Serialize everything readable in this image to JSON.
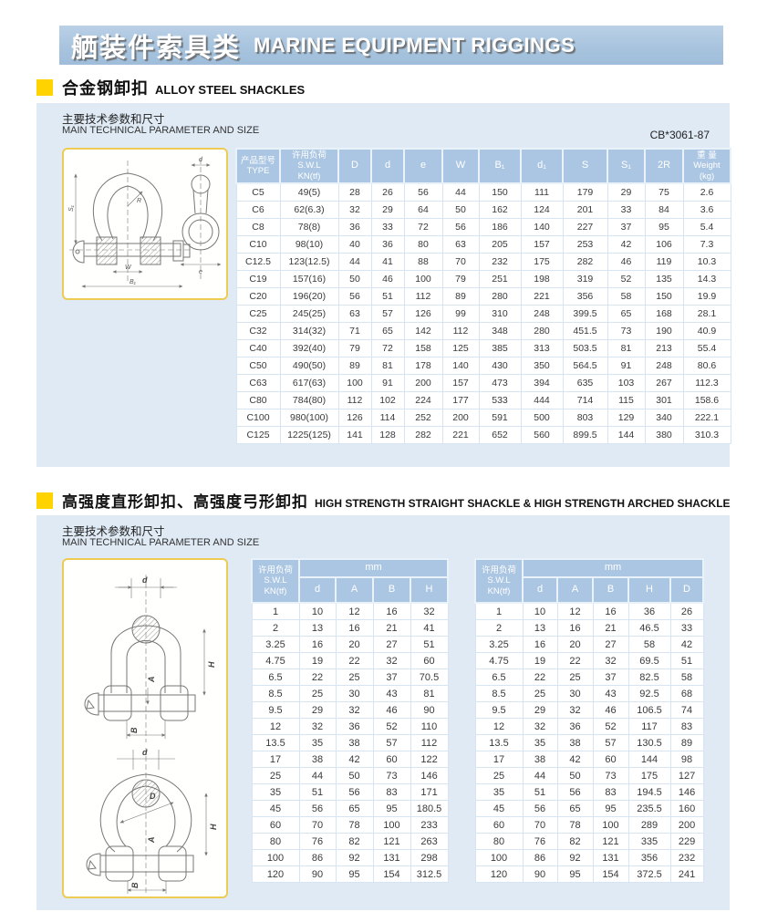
{
  "header": {
    "title_cn": "舾装件索具类",
    "title_en": "MARINE EQUIPMENT RIGGINGS"
  },
  "section1": {
    "heading_cn": "合金钢卸扣",
    "heading_en": "ALLOY STEEL SHACKLES",
    "param_cn": "主要技术参数和尺寸",
    "param_en": "MAIN TECHNICAL PARAMETER AND SIZE",
    "standard": "CB*3061-87",
    "diagram_labels": [
      "S₁",
      "W",
      "B₁",
      "R",
      "d",
      "e"
    ],
    "table": {
      "headers": [
        "产品型号\nTYPE",
        "许用负荷\nS.W.L\nKN(tf)",
        "D",
        "d",
        "e",
        "W",
        "B₁",
        "d₁",
        "S",
        "S₁",
        "2R",
        "重 量\nWeight\n(kg)"
      ],
      "rows": [
        [
          "C5",
          "49(5)",
          "28",
          "26",
          "56",
          "44",
          "150",
          "111",
          "179",
          "29",
          "75",
          "2.6"
        ],
        [
          "C6",
          "62(6.3)",
          "32",
          "29",
          "64",
          "50",
          "162",
          "124",
          "201",
          "33",
          "84",
          "3.6"
        ],
        [
          "C8",
          "78(8)",
          "36",
          "33",
          "72",
          "56",
          "186",
          "140",
          "227",
          "37",
          "95",
          "5.4"
        ],
        [
          "C10",
          "98(10)",
          "40",
          "36",
          "80",
          "63",
          "205",
          "157",
          "253",
          "42",
          "106",
          "7.3"
        ],
        [
          "C12.5",
          "123(12.5)",
          "44",
          "41",
          "88",
          "70",
          "232",
          "175",
          "282",
          "46",
          "119",
          "10.3"
        ],
        [
          "C19",
          "157(16)",
          "50",
          "46",
          "100",
          "79",
          "251",
          "198",
          "319",
          "52",
          "135",
          "14.3"
        ],
        [
          "C20",
          "196(20)",
          "56",
          "51",
          "112",
          "89",
          "280",
          "221",
          "356",
          "58",
          "150",
          "19.9"
        ],
        [
          "C25",
          "245(25)",
          "63",
          "57",
          "126",
          "99",
          "310",
          "248",
          "399.5",
          "65",
          "168",
          "28.1"
        ],
        [
          "C32",
          "314(32)",
          "71",
          "65",
          "142",
          "112",
          "348",
          "280",
          "451.5",
          "73",
          "190",
          "40.9"
        ],
        [
          "C40",
          "392(40)",
          "79",
          "72",
          "158",
          "125",
          "385",
          "313",
          "503.5",
          "81",
          "213",
          "55.4"
        ],
        [
          "C50",
          "490(50)",
          "89",
          "81",
          "178",
          "140",
          "430",
          "350",
          "564.5",
          "91",
          "248",
          "80.6"
        ],
        [
          "C63",
          "617(63)",
          "100",
          "91",
          "200",
          "157",
          "473",
          "394",
          "635",
          "103",
          "267",
          "112.3"
        ],
        [
          "C80",
          "784(80)",
          "112",
          "102",
          "224",
          "177",
          "533",
          "444",
          "714",
          "115",
          "301",
          "158.6"
        ],
        [
          "C100",
          "980(100)",
          "126",
          "114",
          "252",
          "200",
          "591",
          "500",
          "803",
          "129",
          "340",
          "222.1"
        ],
        [
          "C125",
          "1225(125)",
          "141",
          "128",
          "282",
          "221",
          "652",
          "560",
          "899.5",
          "144",
          "380",
          "310.3"
        ]
      ]
    }
  },
  "section2": {
    "heading_cn": "高强度直形卸扣、高强度弓形卸扣",
    "heading_en": "HIGH STRENGTH STRAIGHT SHACKLE & HIGH STRENGTH ARCHED SHACKLE",
    "param_cn": "主要技术参数和尺寸",
    "param_en": "MAIN TECHNICAL PARAMETER AND SIZE",
    "diagram_labels": [
      "d",
      "H",
      "A",
      "B",
      "D"
    ],
    "straight_table": {
      "swl_header": "许用负荷\nS.W.L\nKN(tf)",
      "unit_header": "mm",
      "sub_headers": [
        "d",
        "A",
        "B",
        "H"
      ],
      "rows": [
        [
          "1",
          "10",
          "12",
          "16",
          "32"
        ],
        [
          "2",
          "13",
          "16",
          "21",
          "41"
        ],
        [
          "3.25",
          "16",
          "20",
          "27",
          "51"
        ],
        [
          "4.75",
          "19",
          "22",
          "32",
          "60"
        ],
        [
          "6.5",
          "22",
          "25",
          "37",
          "70.5"
        ],
        [
          "8.5",
          "25",
          "30",
          "43",
          "81"
        ],
        [
          "9.5",
          "29",
          "32",
          "46",
          "90"
        ],
        [
          "12",
          "32",
          "36",
          "52",
          "110"
        ],
        [
          "13.5",
          "35",
          "38",
          "57",
          "112"
        ],
        [
          "17",
          "38",
          "42",
          "60",
          "122"
        ],
        [
          "25",
          "44",
          "50",
          "73",
          "146"
        ],
        [
          "35",
          "51",
          "56",
          "83",
          "171"
        ],
        [
          "45",
          "56",
          "65",
          "95",
          "180.5"
        ],
        [
          "60",
          "70",
          "78",
          "100",
          "233"
        ],
        [
          "80",
          "76",
          "82",
          "121",
          "263"
        ],
        [
          "100",
          "86",
          "92",
          "131",
          "298"
        ],
        [
          "120",
          "90",
          "95",
          "154",
          "312.5"
        ]
      ]
    },
    "arched_table": {
      "swl_header": "许用负荷\nS.W.L\nKN(tf)",
      "unit_header": "mm",
      "sub_headers": [
        "d",
        "A",
        "B",
        "H",
        "D"
      ],
      "rows": [
        [
          "1",
          "10",
          "12",
          "16",
          "36",
          "26"
        ],
        [
          "2",
          "13",
          "16",
          "21",
          "46.5",
          "33"
        ],
        [
          "3.25",
          "16",
          "20",
          "27",
          "58",
          "42"
        ],
        [
          "4.75",
          "19",
          "22",
          "32",
          "69.5",
          "51"
        ],
        [
          "6.5",
          "22",
          "25",
          "37",
          "82.5",
          "58"
        ],
        [
          "8.5",
          "25",
          "30",
          "43",
          "92.5",
          "68"
        ],
        [
          "9.5",
          "29",
          "32",
          "46",
          "106.5",
          "74"
        ],
        [
          "12",
          "32",
          "36",
          "52",
          "117",
          "83"
        ],
        [
          "13.5",
          "35",
          "38",
          "57",
          "130.5",
          "89"
        ],
        [
          "17",
          "38",
          "42",
          "60",
          "144",
          "98"
        ],
        [
          "25",
          "44",
          "50",
          "73",
          "175",
          "127"
        ],
        [
          "35",
          "51",
          "56",
          "83",
          "194.5",
          "146"
        ],
        [
          "45",
          "56",
          "65",
          "95",
          "235.5",
          "160"
        ],
        [
          "60",
          "70",
          "78",
          "100",
          "289",
          "200"
        ],
        [
          "80",
          "76",
          "82",
          "121",
          "335",
          "229"
        ],
        [
          "100",
          "86",
          "92",
          "131",
          "356",
          "232"
        ],
        [
          "120",
          "90",
          "95",
          "154",
          "372.5",
          "241"
        ]
      ]
    }
  },
  "colors": {
    "banner_blue": "#a8c4de",
    "panel_blue": "#dfeaf5",
    "table_header_blue": "#abc6e2",
    "accent_yellow": "#ffd300",
    "diagram_border_yellow": "#eecb52"
  }
}
